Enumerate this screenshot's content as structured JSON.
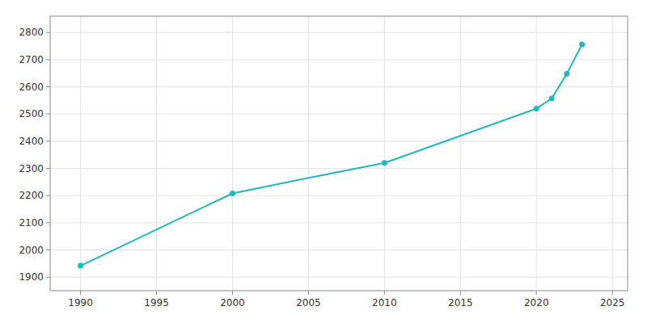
{
  "chart_data": {
    "type": "line",
    "x": [
      1990,
      2000,
      2005,
      2010,
      2020,
      2021,
      2022,
      2023
    ],
    "series": [
      {
        "type": "line",
        "color": "#22b8c0",
        "values": [
          1942,
          2208,
          2265,
          2320,
          2520,
          2557,
          2648,
          2756
        ]
      },
      {
        "type": "scatter",
        "marker": "circle",
        "color": "#22b8c0",
        "values": [
          1942,
          2208,
          null,
          2320,
          2520,
          2557,
          2648,
          2756
        ]
      }
    ],
    "xlim": [
      1988,
      2026
    ],
    "ylim": [
      1850,
      2860
    ],
    "xticks": [
      1990,
      1995,
      2000,
      2005,
      2010,
      2015,
      2020,
      2025
    ],
    "yticks": [
      1900,
      2000,
      2100,
      2200,
      2300,
      2400,
      2500,
      2600,
      2700,
      2800
    ],
    "grid": true
  }
}
